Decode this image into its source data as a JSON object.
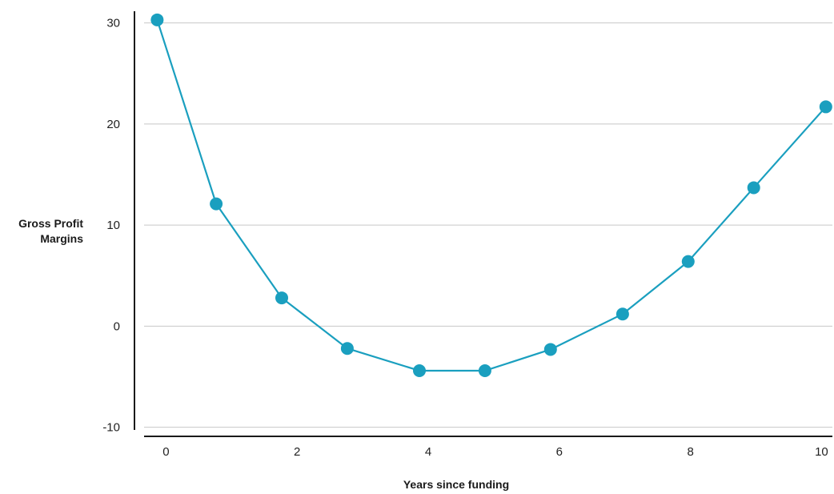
{
  "chart_data": {
    "type": "line",
    "title": "",
    "xlabel": "Years since funding",
    "ylabel": "Gross Profit Margins",
    "x": [
      0,
      0.9,
      1.9,
      2.9,
      4.0,
      5.0,
      6.0,
      7.1,
      8.1,
      9.1,
      10.2
    ],
    "series": [
      {
        "values": [
          30.3,
          12.1,
          2.8,
          -2.2,
          -4.4,
          -4.4,
          -2.3,
          1.2,
          6.4,
          13.7,
          21.7
        ],
        "color": "#1a9fbf"
      }
    ],
    "xticks": [
      0,
      2,
      4,
      6,
      8,
      10
    ],
    "yticks": [
      30,
      20,
      10,
      0,
      -10
    ],
    "xlim": [
      -0.2,
      10.3
    ],
    "ylim": [
      -10.5,
      31
    ],
    "grid": "horizontal",
    "gridline_color": "#c8c8c8",
    "axis_color": "#1a1a1a"
  }
}
